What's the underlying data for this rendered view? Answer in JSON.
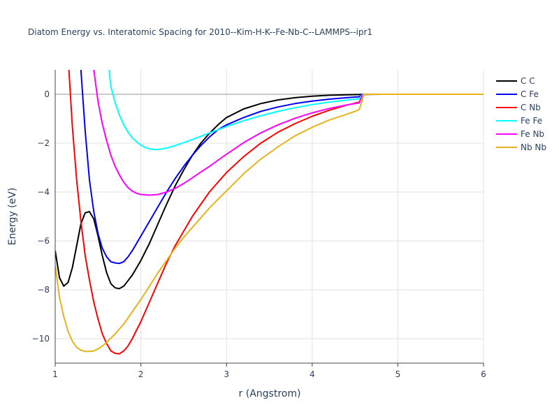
{
  "chart_data": {
    "type": "line",
    "title": "Diatom Energy vs. Interatomic Spacing for 2010--Kim-H-K--Fe-Nb-C--LAMMPS--ipr1",
    "xlabel": "r (Angstrom)",
    "ylabel": "Energy (eV)",
    "xlim": [
      1,
      6
    ],
    "ylim": [
      -11,
      1
    ],
    "x_ticks": [
      "1",
      "2",
      "3",
      "4",
      "5",
      "6"
    ],
    "y_ticks": [
      "0",
      "−2",
      "−4",
      "−6",
      "−8",
      "−10"
    ],
    "grid": true,
    "legend_position": "top-right",
    "series": [
      {
        "name": "C C",
        "color": "#000000",
        "points": [
          [
            1.0,
            -6.4
          ],
          [
            1.05,
            -7.5
          ],
          [
            1.1,
            -7.85
          ],
          [
            1.15,
            -7.7
          ],
          [
            1.2,
            -7.1
          ],
          [
            1.25,
            -6.2
          ],
          [
            1.3,
            -5.3
          ],
          [
            1.35,
            -4.85
          ],
          [
            1.4,
            -4.8
          ],
          [
            1.45,
            -5.1
          ],
          [
            1.5,
            -5.8
          ],
          [
            1.55,
            -6.6
          ],
          [
            1.6,
            -7.3
          ],
          [
            1.65,
            -7.75
          ],
          [
            1.7,
            -7.92
          ],
          [
            1.75,
            -7.95
          ],
          [
            1.8,
            -7.85
          ],
          [
            1.9,
            -7.4
          ],
          [
            2.0,
            -6.8
          ],
          [
            2.1,
            -6.1
          ],
          [
            2.2,
            -5.3
          ],
          [
            2.3,
            -4.5
          ],
          [
            2.4,
            -3.75
          ],
          [
            2.5,
            -3.1
          ],
          [
            2.6,
            -2.5
          ],
          [
            2.7,
            -2.0
          ],
          [
            2.8,
            -1.6
          ],
          [
            2.9,
            -1.25
          ],
          [
            3.0,
            -0.95
          ],
          [
            3.2,
            -0.6
          ],
          [
            3.4,
            -0.38
          ],
          [
            3.6,
            -0.23
          ],
          [
            3.8,
            -0.14
          ],
          [
            4.0,
            -0.08
          ],
          [
            4.2,
            -0.04
          ],
          [
            4.4,
            -0.02
          ],
          [
            4.6,
            -0.01
          ],
          [
            4.8,
            0
          ],
          [
            5.0,
            0
          ],
          [
            6.0,
            0
          ]
        ]
      },
      {
        "name": "C Fe",
        "color": "#0000ff",
        "points": [
          [
            1.3,
            1.0
          ],
          [
            1.35,
            -1.5
          ],
          [
            1.4,
            -3.5
          ],
          [
            1.45,
            -4.8
          ],
          [
            1.5,
            -5.7
          ],
          [
            1.55,
            -6.3
          ],
          [
            1.6,
            -6.65
          ],
          [
            1.65,
            -6.85
          ],
          [
            1.7,
            -6.9
          ],
          [
            1.75,
            -6.92
          ],
          [
            1.8,
            -6.85
          ],
          [
            1.85,
            -6.65
          ],
          [
            1.9,
            -6.4
          ],
          [
            2.0,
            -5.8
          ],
          [
            2.1,
            -5.2
          ],
          [
            2.2,
            -4.6
          ],
          [
            2.3,
            -4.0
          ],
          [
            2.4,
            -3.45
          ],
          [
            2.5,
            -2.95
          ],
          [
            2.6,
            -2.5
          ],
          [
            2.7,
            -2.1
          ],
          [
            2.8,
            -1.75
          ],
          [
            2.9,
            -1.45
          ],
          [
            3.0,
            -1.25
          ],
          [
            3.2,
            -0.95
          ],
          [
            3.4,
            -0.7
          ],
          [
            3.6,
            -0.52
          ],
          [
            3.8,
            -0.38
          ],
          [
            4.0,
            -0.28
          ],
          [
            4.2,
            -0.2
          ],
          [
            4.4,
            -0.14
          ],
          [
            4.55,
            -0.1
          ],
          [
            4.58,
            -0.02
          ],
          [
            4.6,
            0
          ],
          [
            5.0,
            0
          ],
          [
            6.0,
            0
          ]
        ]
      },
      {
        "name": "C Nb",
        "color": "#ff0000",
        "points": [
          [
            1.16,
            1.0
          ],
          [
            1.2,
            -1.3
          ],
          [
            1.25,
            -3.5
          ],
          [
            1.3,
            -5.2
          ],
          [
            1.35,
            -6.6
          ],
          [
            1.4,
            -7.6
          ],
          [
            1.45,
            -8.5
          ],
          [
            1.5,
            -9.2
          ],
          [
            1.55,
            -9.8
          ],
          [
            1.6,
            -10.2
          ],
          [
            1.65,
            -10.5
          ],
          [
            1.7,
            -10.6
          ],
          [
            1.75,
            -10.62
          ],
          [
            1.8,
            -10.5
          ],
          [
            1.85,
            -10.3
          ],
          [
            1.9,
            -10.0
          ],
          [
            2.0,
            -9.3
          ],
          [
            2.1,
            -8.5
          ],
          [
            2.2,
            -7.7
          ],
          [
            2.3,
            -6.9
          ],
          [
            2.4,
            -6.2
          ],
          [
            2.5,
            -5.6
          ],
          [
            2.6,
            -5.0
          ],
          [
            2.7,
            -4.5
          ],
          [
            2.8,
            -4.0
          ],
          [
            2.9,
            -3.6
          ],
          [
            3.0,
            -3.2
          ],
          [
            3.2,
            -2.55
          ],
          [
            3.4,
            -2.0
          ],
          [
            3.6,
            -1.55
          ],
          [
            3.8,
            -1.2
          ],
          [
            4.0,
            -0.9
          ],
          [
            4.2,
            -0.65
          ],
          [
            4.4,
            -0.45
          ],
          [
            4.55,
            -0.32
          ],
          [
            4.58,
            -0.05
          ],
          [
            4.6,
            0
          ],
          [
            5.0,
            0
          ],
          [
            6.0,
            0
          ]
        ]
      },
      {
        "name": "Fe Fe",
        "color": "#00ffff",
        "points": [
          [
            1.63,
            1.0
          ],
          [
            1.65,
            0.3
          ],
          [
            1.7,
            -0.35
          ],
          [
            1.75,
            -0.85
          ],
          [
            1.8,
            -1.25
          ],
          [
            1.85,
            -1.55
          ],
          [
            1.9,
            -1.78
          ],
          [
            1.95,
            -1.95
          ],
          [
            2.0,
            -2.08
          ],
          [
            2.05,
            -2.18
          ],
          [
            2.1,
            -2.23
          ],
          [
            2.15,
            -2.26
          ],
          [
            2.2,
            -2.26
          ],
          [
            2.3,
            -2.2
          ],
          [
            2.4,
            -2.1
          ],
          [
            2.5,
            -1.98
          ],
          [
            2.6,
            -1.85
          ],
          [
            2.7,
            -1.72
          ],
          [
            2.8,
            -1.58
          ],
          [
            2.9,
            -1.45
          ],
          [
            3.0,
            -1.32
          ],
          [
            3.2,
            -1.08
          ],
          [
            3.4,
            -0.88
          ],
          [
            3.6,
            -0.7
          ],
          [
            3.8,
            -0.55
          ],
          [
            4.0,
            -0.42
          ],
          [
            4.2,
            -0.32
          ],
          [
            4.4,
            -0.24
          ],
          [
            4.55,
            -0.18
          ],
          [
            4.58,
            -0.04
          ],
          [
            4.6,
            0
          ],
          [
            5.0,
            0
          ],
          [
            6.0,
            0
          ]
        ]
      },
      {
        "name": "Fe Nb",
        "color": "#ff00ff",
        "points": [
          [
            1.45,
            1.0
          ],
          [
            1.5,
            -0.3
          ],
          [
            1.55,
            -1.2
          ],
          [
            1.6,
            -1.9
          ],
          [
            1.65,
            -2.5
          ],
          [
            1.7,
            -2.95
          ],
          [
            1.75,
            -3.3
          ],
          [
            1.8,
            -3.6
          ],
          [
            1.85,
            -3.82
          ],
          [
            1.9,
            -3.96
          ],
          [
            1.95,
            -4.05
          ],
          [
            2.0,
            -4.1
          ],
          [
            2.1,
            -4.13
          ],
          [
            2.2,
            -4.1
          ],
          [
            2.3,
            -4.0
          ],
          [
            2.4,
            -3.85
          ],
          [
            2.5,
            -3.65
          ],
          [
            2.6,
            -3.42
          ],
          [
            2.7,
            -3.18
          ],
          [
            2.8,
            -2.95
          ],
          [
            2.9,
            -2.7
          ],
          [
            3.0,
            -2.45
          ],
          [
            3.2,
            -1.98
          ],
          [
            3.4,
            -1.58
          ],
          [
            3.6,
            -1.25
          ],
          [
            3.8,
            -0.98
          ],
          [
            4.0,
            -0.76
          ],
          [
            4.2,
            -0.58
          ],
          [
            4.4,
            -0.44
          ],
          [
            4.55,
            -0.35
          ],
          [
            4.58,
            -0.08
          ],
          [
            4.6,
            0
          ],
          [
            5.0,
            0
          ],
          [
            6.0,
            0
          ]
        ]
      },
      {
        "name": "Nb Nb",
        "color": "#e6b31e",
        "points": [
          [
            1.0,
            -7.0
          ],
          [
            1.05,
            -8.3
          ],
          [
            1.1,
            -9.1
          ],
          [
            1.15,
            -9.7
          ],
          [
            1.2,
            -10.1
          ],
          [
            1.25,
            -10.35
          ],
          [
            1.3,
            -10.47
          ],
          [
            1.35,
            -10.52
          ],
          [
            1.4,
            -10.52
          ],
          [
            1.45,
            -10.5
          ],
          [
            1.5,
            -10.42
          ],
          [
            1.55,
            -10.3
          ],
          [
            1.6,
            -10.15
          ],
          [
            1.7,
            -9.8
          ],
          [
            1.8,
            -9.4
          ],
          [
            1.9,
            -8.9
          ],
          [
            2.0,
            -8.4
          ],
          [
            2.1,
            -7.85
          ],
          [
            2.2,
            -7.3
          ],
          [
            2.3,
            -6.8
          ],
          [
            2.4,
            -6.3
          ],
          [
            2.5,
            -5.85
          ],
          [
            2.6,
            -5.45
          ],
          [
            2.7,
            -5.05
          ],
          [
            2.8,
            -4.65
          ],
          [
            2.9,
            -4.3
          ],
          [
            3.0,
            -3.95
          ],
          [
            3.2,
            -3.25
          ],
          [
            3.4,
            -2.65
          ],
          [
            3.6,
            -2.15
          ],
          [
            3.8,
            -1.7
          ],
          [
            4.0,
            -1.35
          ],
          [
            4.2,
            -1.05
          ],
          [
            4.4,
            -0.82
          ],
          [
            4.5,
            -0.7
          ],
          [
            4.55,
            -0.62
          ],
          [
            4.58,
            -0.3
          ],
          [
            4.6,
            0
          ],
          [
            4.8,
            0
          ],
          [
            5.0,
            0
          ],
          [
            6.0,
            0
          ]
        ]
      }
    ]
  }
}
